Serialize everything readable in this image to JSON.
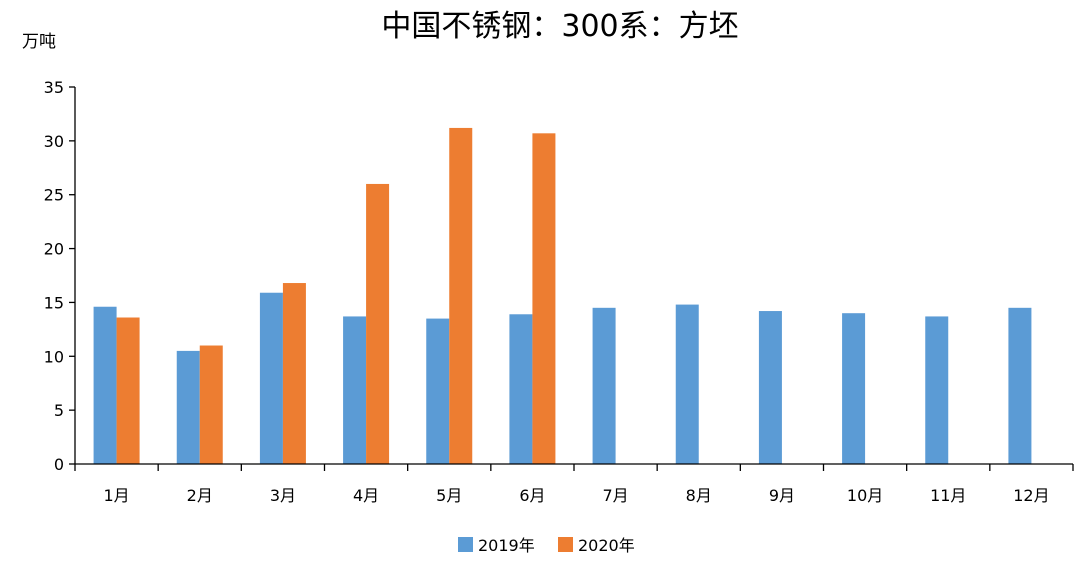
{
  "chart_data": {
    "type": "bar",
    "title": "中国不锈钢：300系：方坯",
    "ylabel": "万吨",
    "xlabel": "",
    "categories": [
      "1月",
      "2月",
      "3月",
      "4月",
      "5月",
      "6月",
      "7月",
      "8月",
      "9月",
      "10月",
      "11月",
      "12月"
    ],
    "series": [
      {
        "name": "2019年",
        "color": "#5b9bd5",
        "values": [
          14.6,
          10.5,
          15.9,
          13.7,
          13.5,
          13.9,
          14.5,
          14.8,
          14.2,
          14.0,
          13.7,
          14.5
        ]
      },
      {
        "name": "2020年",
        "color": "#ed7d31",
        "values": [
          13.6,
          11.0,
          16.8,
          26.0,
          31.2,
          30.7,
          null,
          null,
          null,
          null,
          null,
          null
        ]
      }
    ],
    "ylim": [
      0,
      35
    ],
    "yticks": [
      0,
      5,
      10,
      15,
      20,
      25,
      30,
      35
    ],
    "grid": false,
    "legend_position": "bottom"
  }
}
